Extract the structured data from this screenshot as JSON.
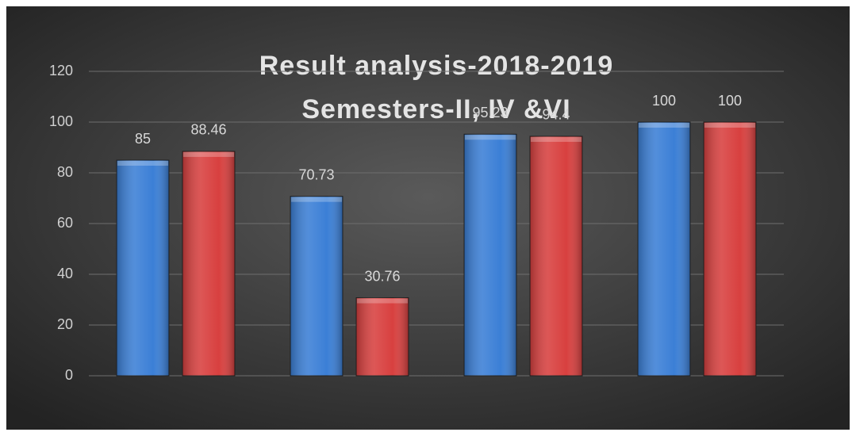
{
  "chart_data": {
    "type": "bar",
    "title": "Result analysis-2018-2019",
    "subtitle": "Semesters-II, IV &VI",
    "categories": [
      null,
      null,
      null,
      null
    ],
    "series": [
      {
        "color": "#3b7fd6",
        "values": [
          85,
          70.73,
          95.23,
          100
        ]
      },
      {
        "color": "#d8403f",
        "values": [
          88.46,
          30.76,
          94.4,
          100
        ]
      }
    ],
    "ylim": [
      0,
      120
    ],
    "yticks": [
      0,
      20,
      40,
      60,
      80,
      100,
      120
    ],
    "grid": true
  }
}
